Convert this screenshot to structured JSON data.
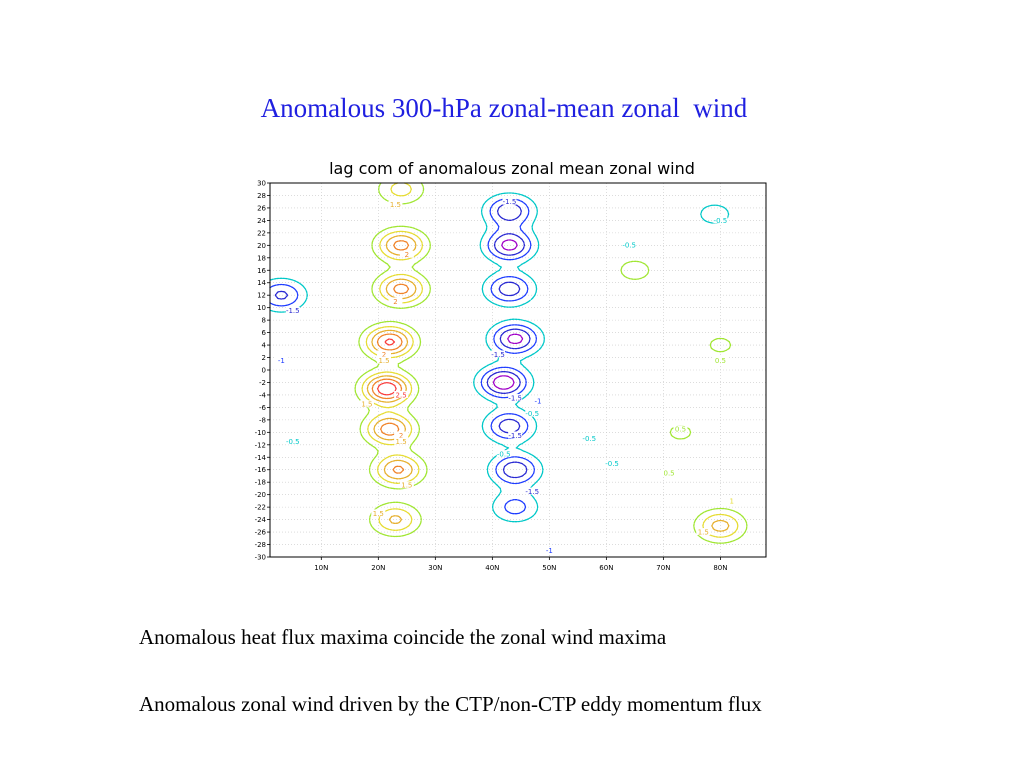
{
  "slide": {
    "title": "Anomalous 300-hPa zonal-mean zonal  wind",
    "bullets": [
      "Anomalous heat flux maxima coincide the zonal wind maxima",
      "Anomalous zonal wind driven by the CTP/non-CTP eddy momentum flux"
    ]
  },
  "chart_data": {
    "type": "contour",
    "title": "lag com of anomalous zonal mean zonal wind",
    "xlabel": "",
    "ylabel": "",
    "x_ticks": [
      "10N",
      "20N",
      "30N",
      "40N",
      "50N",
      "60N",
      "70N",
      "80N"
    ],
    "x_tick_values": [
      10,
      20,
      30,
      40,
      50,
      60,
      70,
      80
    ],
    "y_ticks": [
      30,
      28,
      26,
      24,
      22,
      20,
      18,
      16,
      14,
      12,
      10,
      8,
      6,
      4,
      2,
      0,
      -2,
      -4,
      -6,
      -8,
      -10,
      -12,
      -14,
      -16,
      -18,
      -20,
      -22,
      -24,
      -26,
      -28,
      -30
    ],
    "xlim": [
      1,
      88
    ],
    "ylim": [
      -30,
      30
    ],
    "grid": true,
    "grid_style": "dotted",
    "contour_levels": [
      -2,
      -1.5,
      -1,
      -0.5,
      0.5,
      1,
      1.5,
      2,
      2.5
    ],
    "level_colors": {
      "-2": "#a000c8",
      "-1.5": "#2828d2",
      "-1": "#1e3cff",
      "-0.5": "#00c8c8",
      "0.5": "#a0e632",
      "1": "#e6dc32",
      "1.5": "#e6af2d",
      "2": "#f08228",
      "2.5": "#fa3c3c"
    },
    "extrema": [
      {
        "lat": 24,
        "lag": 29,
        "value": 1.2
      },
      {
        "lat": 24,
        "lag": 20,
        "value": 2.2
      },
      {
        "lat": 24,
        "lag": 13,
        "value": 2.2
      },
      {
        "lat": 22,
        "lag": 4.5,
        "value": 2.6
      },
      {
        "lat": 21.5,
        "lag": -3,
        "value": 2.9
      },
      {
        "lat": 22,
        "lag": -9.5,
        "value": 2.3
      },
      {
        "lat": 23.5,
        "lag": -16,
        "value": 2.1
      },
      {
        "lat": 23,
        "lag": -24,
        "value": 1.6
      },
      {
        "lat": 43,
        "lag": 25.5,
        "value": -1.9
      },
      {
        "lat": 43,
        "lag": 20,
        "value": -2.2
      },
      {
        "lat": 43,
        "lag": 13,
        "value": -1.8
      },
      {
        "lat": 44,
        "lag": 5,
        "value": -2.2
      },
      {
        "lat": 42,
        "lag": -2,
        "value": -2.4
      },
      {
        "lat": 43,
        "lag": -9,
        "value": -1.8
      },
      {
        "lat": 44,
        "lag": -16,
        "value": -1.9
      },
      {
        "lat": 44,
        "lag": -22,
        "value": -1.2
      },
      {
        "lat": 3,
        "lag": 12,
        "value": -1.6
      },
      {
        "lat": 79,
        "lag": 25,
        "value": -0.7
      },
      {
        "lat": 65,
        "lag": 16,
        "value": 0.7
      },
      {
        "lat": 80,
        "lag": -25,
        "value": 1.7
      },
      {
        "lat": 80,
        "lag": 4,
        "value": 0.6
      },
      {
        "lat": 73,
        "lag": -10,
        "value": 0.6
      }
    ],
    "contour_labels": [
      {
        "text": "1.5",
        "lat": 23,
        "lag": 26.5,
        "color": "#e6af2d"
      },
      {
        "text": "-1.5",
        "lat": 43,
        "lag": 27,
        "color": "#2828d2"
      },
      {
        "text": "-0.5",
        "lat": 80,
        "lag": 24,
        "color": "#00c8c8"
      },
      {
        "text": "-0.5",
        "lat": 64,
        "lag": 20,
        "color": "#00c8c8"
      },
      {
        "text": "2",
        "lat": 25,
        "lag": 18.5,
        "color": "#f08228"
      },
      {
        "text": "-1.5",
        "lat": 5,
        "lag": 9.5,
        "color": "#2828d2"
      },
      {
        "text": "2",
        "lat": 23,
        "lag": 11,
        "color": "#f08228"
      },
      {
        "text": "-1.5",
        "lat": 41,
        "lag": 2.5,
        "color": "#2828d2"
      },
      {
        "text": "2",
        "lat": 21,
        "lag": 2.5,
        "color": "#f08228"
      },
      {
        "text": "1.5",
        "lat": 21,
        "lag": 1.5,
        "color": "#e6af2d"
      },
      {
        "text": "-1",
        "lat": 3,
        "lag": 1.5,
        "color": "#1e3cff"
      },
      {
        "text": "0.5",
        "lat": 80,
        "lag": 1.5,
        "color": "#a0e632"
      },
      {
        "text": "2.5",
        "lat": 24,
        "lag": -4,
        "color": "#fa3c3c"
      },
      {
        "text": "1.5",
        "lat": 18,
        "lag": -5.5,
        "color": "#e6af2d"
      },
      {
        "text": "-1.5",
        "lat": 44,
        "lag": -4.5,
        "color": "#2828d2"
      },
      {
        "text": "-1",
        "lat": 48,
        "lag": -5,
        "color": "#1e3cff"
      },
      {
        "text": "-0.5",
        "lat": 47,
        "lag": -7,
        "color": "#00c8c8"
      },
      {
        "text": "-1.5",
        "lat": 44,
        "lag": -10.5,
        "color": "#2828d2"
      },
      {
        "text": "-0.5",
        "lat": 57,
        "lag": -11,
        "color": "#00c8c8"
      },
      {
        "text": "-0.5",
        "lat": 5,
        "lag": -11.5,
        "color": "#00c8c8"
      },
      {
        "text": "2",
        "lat": 24,
        "lag": -10.5,
        "color": "#f08228"
      },
      {
        "text": "1.5",
        "lat": 24,
        "lag": -11.5,
        "color": "#e6af2d"
      },
      {
        "text": "0.5",
        "lat": 73,
        "lag": -9.5,
        "color": "#a0e632"
      },
      {
        "text": "-0.5",
        "lat": 42,
        "lag": -13.5,
        "color": "#00c8c8"
      },
      {
        "text": "-0.5",
        "lat": 61,
        "lag": -15,
        "color": "#00c8c8"
      },
      {
        "text": "0.5",
        "lat": 71,
        "lag": -16.5,
        "color": "#a0e632"
      },
      {
        "text": "1.5",
        "lat": 25,
        "lag": -18.5,
        "color": "#e6af2d"
      },
      {
        "text": "-1.5",
        "lat": 47,
        "lag": -19.5,
        "color": "#2828d2"
      },
      {
        "text": "1.5",
        "lat": 20,
        "lag": -23,
        "color": "#e6af2d"
      },
      {
        "text": "1",
        "lat": 82,
        "lag": -21,
        "color": "#e6dc32"
      },
      {
        "text": "1.5",
        "lat": 77,
        "lag": -26,
        "color": "#e6af2d"
      },
      {
        "text": "-1",
        "lat": 50,
        "lag": -29,
        "color": "#1e3cff"
      }
    ]
  }
}
